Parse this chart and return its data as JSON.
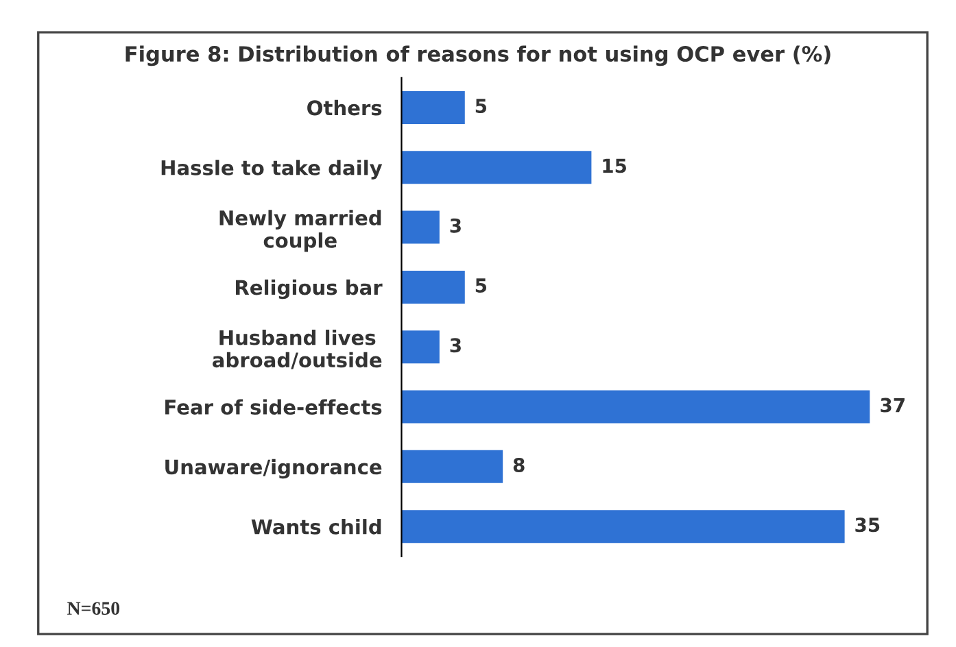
{
  "chart_data": {
    "type": "bar",
    "orientation": "horizontal",
    "title": "Figure 8: Distribution of reasons for not using OCP ever (%)",
    "categories": [
      "Others",
      "Hassle to take daily",
      "Newly married\ncouple",
      "Religious bar",
      "Husband lives\nabroad/outside",
      "Fear of side-effects",
      "Unaware/ignorance",
      "Wants child"
    ],
    "values": [
      5,
      15,
      3,
      5,
      3,
      37,
      8,
      35
    ],
    "color": "#2f72d4",
    "data_labels": true,
    "grid": false,
    "legend": false,
    "annotations": [
      "N=650"
    ]
  }
}
